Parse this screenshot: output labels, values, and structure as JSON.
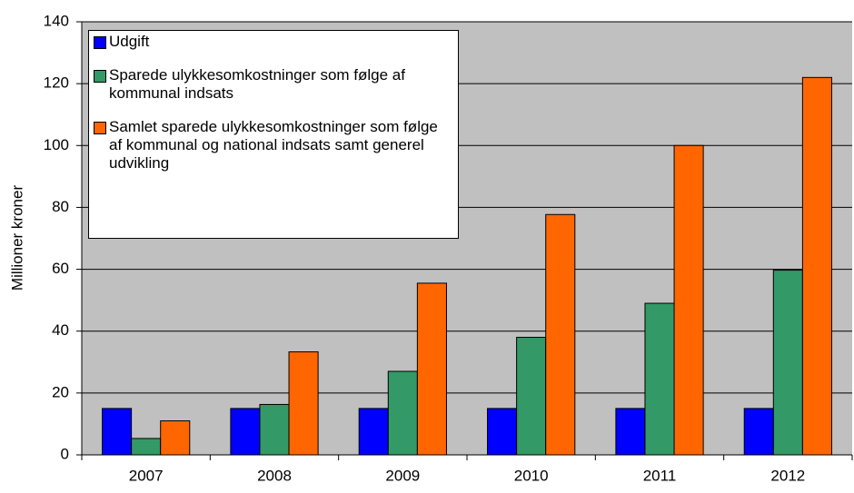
{
  "chart_data": {
    "type": "bar",
    "y_label": "Millioner kroner",
    "categories": [
      "2007",
      "2008",
      "2009",
      "2010",
      "2011",
      "2012"
    ],
    "series": [
      {
        "name": "Udgift",
        "color": "#0000ff",
        "values": [
          15,
          15,
          15,
          15,
          15,
          15
        ]
      },
      {
        "name": "Sparede ulykkesomkostninger som følge af kommunal indsats",
        "color": "#339966",
        "values": [
          5.3,
          16.3,
          27,
          38,
          49,
          59.7
        ]
      },
      {
        "name": "Samlet sparede ulykkesomkostninger som følge af kommunal og national indsats samt generel udvikling",
        "color": "#ff6600",
        "values": [
          11,
          33.3,
          55.5,
          77.7,
          100,
          122
        ]
      }
    ],
    "ylim": [
      0,
      140
    ],
    "yticks": [
      0,
      20,
      40,
      60,
      80,
      100,
      120,
      140
    ],
    "grid": true,
    "plot_background": "#c0c0c0"
  }
}
